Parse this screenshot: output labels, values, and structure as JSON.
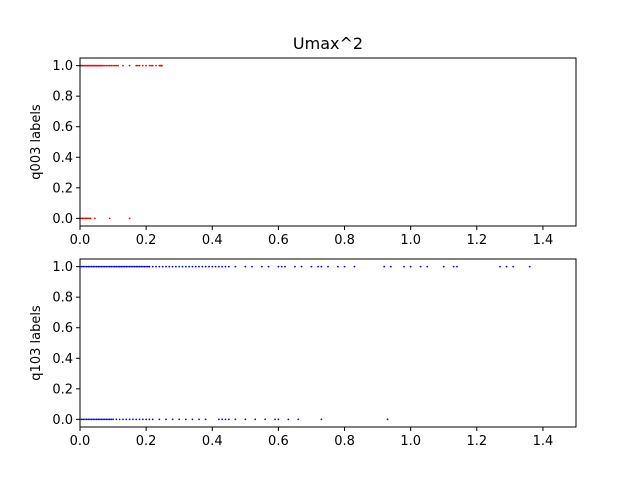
{
  "chart_data": [
    {
      "type": "scatter",
      "title": "Umax^2",
      "xlabel": "",
      "ylabel": "q003 labels",
      "xlim": [
        0,
        1.5
      ],
      "ylim": [
        -0.05,
        1.05
      ],
      "xticks": [
        "0.0",
        "0.2",
        "0.4",
        "0.6",
        "0.8",
        "1.0",
        "1.2",
        "1.4"
      ],
      "yticks": [
        "0.0",
        "0.2",
        "0.4",
        "0.6",
        "0.8",
        "1.0"
      ],
      "grid": false,
      "color": "#ff0000",
      "series": [
        {
          "points": [
            [
              0.0,
              1
            ],
            [
              0.003,
              1
            ],
            [
              0.006,
              1
            ],
            [
              0.009,
              1
            ],
            [
              0.012,
              1
            ],
            [
              0.015,
              1
            ],
            [
              0.018,
              1
            ],
            [
              0.021,
              1
            ],
            [
              0.024,
              1
            ],
            [
              0.027,
              1
            ],
            [
              0.03,
              1
            ],
            [
              0.033,
              1
            ],
            [
              0.036,
              1
            ],
            [
              0.039,
              1
            ],
            [
              0.042,
              1
            ],
            [
              0.045,
              1
            ],
            [
              0.048,
              1
            ],
            [
              0.051,
              1
            ],
            [
              0.054,
              1
            ],
            [
              0.057,
              1
            ],
            [
              0.06,
              1
            ],
            [
              0.063,
              1
            ],
            [
              0.066,
              1
            ],
            [
              0.07,
              1
            ],
            [
              0.075,
              1
            ],
            [
              0.08,
              1
            ],
            [
              0.085,
              1
            ],
            [
              0.09,
              1
            ],
            [
              0.095,
              1
            ],
            [
              0.1,
              1
            ],
            [
              0.105,
              1
            ],
            [
              0.11,
              1
            ],
            [
              0.115,
              1
            ],
            [
              0.13,
              1
            ],
            [
              0.15,
              1
            ],
            [
              0.17,
              1
            ],
            [
              0.175,
              1
            ],
            [
              0.18,
              1
            ],
            [
              0.19,
              1
            ],
            [
              0.2,
              1
            ],
            [
              0.21,
              1
            ],
            [
              0.215,
              1
            ],
            [
              0.22,
              1
            ],
            [
              0.23,
              1
            ],
            [
              0.24,
              1
            ],
            [
              0.242,
              1
            ],
            [
              0.244,
              1
            ],
            [
              0.246,
              1
            ],
            [
              0.248,
              1
            ],
            [
              0.0,
              0
            ],
            [
              0.004,
              0
            ],
            [
              0.008,
              0
            ],
            [
              0.012,
              0
            ],
            [
              0.016,
              0
            ],
            [
              0.02,
              0
            ],
            [
              0.024,
              0
            ],
            [
              0.028,
              0
            ],
            [
              0.032,
              0
            ],
            [
              0.045,
              0
            ],
            [
              0.09,
              0
            ],
            [
              0.15,
              0
            ]
          ]
        }
      ]
    },
    {
      "type": "scatter",
      "title": "",
      "xlabel": "",
      "ylabel": "q103 labels",
      "xlim": [
        0,
        1.5
      ],
      "ylim": [
        -0.05,
        1.05
      ],
      "xticks": [
        "0.0",
        "0.2",
        "0.4",
        "0.6",
        "0.8",
        "1.0",
        "1.2",
        "1.4"
      ],
      "yticks": [
        "0.0",
        "0.2",
        "0.4",
        "0.6",
        "0.8",
        "1.0"
      ],
      "grid": false,
      "color": "#0000ff",
      "series": [
        {
          "points": [
            [
              0.0,
              1
            ],
            [
              0.005,
              1
            ],
            [
              0.01,
              1
            ],
            [
              0.015,
              1
            ],
            [
              0.02,
              1
            ],
            [
              0.025,
              1
            ],
            [
              0.03,
              1
            ],
            [
              0.035,
              1
            ],
            [
              0.04,
              1
            ],
            [
              0.045,
              1
            ],
            [
              0.05,
              1
            ],
            [
              0.055,
              1
            ],
            [
              0.06,
              1
            ],
            [
              0.065,
              1
            ],
            [
              0.07,
              1
            ],
            [
              0.075,
              1
            ],
            [
              0.08,
              1
            ],
            [
              0.085,
              1
            ],
            [
              0.09,
              1
            ],
            [
              0.095,
              1
            ],
            [
              0.1,
              1
            ],
            [
              0.105,
              1
            ],
            [
              0.11,
              1
            ],
            [
              0.115,
              1
            ],
            [
              0.12,
              1
            ],
            [
              0.125,
              1
            ],
            [
              0.13,
              1
            ],
            [
              0.135,
              1
            ],
            [
              0.14,
              1
            ],
            [
              0.145,
              1
            ],
            [
              0.15,
              1
            ],
            [
              0.155,
              1
            ],
            [
              0.16,
              1
            ],
            [
              0.165,
              1
            ],
            [
              0.17,
              1
            ],
            [
              0.175,
              1
            ],
            [
              0.18,
              1
            ],
            [
              0.185,
              1
            ],
            [
              0.19,
              1
            ],
            [
              0.195,
              1
            ],
            [
              0.2,
              1
            ],
            [
              0.205,
              1
            ],
            [
              0.21,
              1
            ],
            [
              0.22,
              1
            ],
            [
              0.23,
              1
            ],
            [
              0.24,
              1
            ],
            [
              0.25,
              1
            ],
            [
              0.26,
              1
            ],
            [
              0.27,
              1
            ],
            [
              0.28,
              1
            ],
            [
              0.29,
              1
            ],
            [
              0.3,
              1
            ],
            [
              0.31,
              1
            ],
            [
              0.32,
              1
            ],
            [
              0.33,
              1
            ],
            [
              0.34,
              1
            ],
            [
              0.35,
              1
            ],
            [
              0.36,
              1
            ],
            [
              0.37,
              1
            ],
            [
              0.38,
              1
            ],
            [
              0.39,
              1
            ],
            [
              0.4,
              1
            ],
            [
              0.41,
              1
            ],
            [
              0.42,
              1
            ],
            [
              0.43,
              1
            ],
            [
              0.44,
              1
            ],
            [
              0.45,
              1
            ],
            [
              0.47,
              1
            ],
            [
              0.5,
              1
            ],
            [
              0.52,
              1
            ],
            [
              0.55,
              1
            ],
            [
              0.57,
              1
            ],
            [
              0.6,
              1
            ],
            [
              0.61,
              1
            ],
            [
              0.62,
              1
            ],
            [
              0.65,
              1
            ],
            [
              0.67,
              1
            ],
            [
              0.7,
              1
            ],
            [
              0.72,
              1
            ],
            [
              0.73,
              1
            ],
            [
              0.75,
              1
            ],
            [
              0.78,
              1
            ],
            [
              0.8,
              1
            ],
            [
              0.83,
              1
            ],
            [
              0.92,
              1
            ],
            [
              0.94,
              1
            ],
            [
              0.98,
              1
            ],
            [
              1.0,
              1
            ],
            [
              1.03,
              1
            ],
            [
              1.05,
              1
            ],
            [
              1.1,
              1
            ],
            [
              1.13,
              1
            ],
            [
              1.14,
              1
            ],
            [
              1.27,
              1
            ],
            [
              1.29,
              1
            ],
            [
              1.31,
              1
            ],
            [
              1.36,
              1
            ],
            [
              0.0,
              0
            ],
            [
              0.005,
              0
            ],
            [
              0.01,
              0
            ],
            [
              0.015,
              0
            ],
            [
              0.02,
              0
            ],
            [
              0.025,
              0
            ],
            [
              0.03,
              0
            ],
            [
              0.035,
              0
            ],
            [
              0.04,
              0
            ],
            [
              0.045,
              0
            ],
            [
              0.05,
              0
            ],
            [
              0.055,
              0
            ],
            [
              0.06,
              0
            ],
            [
              0.065,
              0
            ],
            [
              0.07,
              0
            ],
            [
              0.075,
              0
            ],
            [
              0.08,
              0
            ],
            [
              0.085,
              0
            ],
            [
              0.09,
              0
            ],
            [
              0.095,
              0
            ],
            [
              0.1,
              0
            ],
            [
              0.11,
              0
            ],
            [
              0.12,
              0
            ],
            [
              0.13,
              0
            ],
            [
              0.14,
              0
            ],
            [
              0.15,
              0
            ],
            [
              0.16,
              0
            ],
            [
              0.17,
              0
            ],
            [
              0.18,
              0
            ],
            [
              0.19,
              0
            ],
            [
              0.2,
              0
            ],
            [
              0.21,
              0
            ],
            [
              0.22,
              0
            ],
            [
              0.24,
              0
            ],
            [
              0.26,
              0
            ],
            [
              0.28,
              0
            ],
            [
              0.3,
              0
            ],
            [
              0.32,
              0
            ],
            [
              0.34,
              0
            ],
            [
              0.36,
              0
            ],
            [
              0.38,
              0
            ],
            [
              0.42,
              0
            ],
            [
              0.43,
              0
            ],
            [
              0.44,
              0
            ],
            [
              0.45,
              0
            ],
            [
              0.47,
              0
            ],
            [
              0.5,
              0
            ],
            [
              0.53,
              0
            ],
            [
              0.56,
              0
            ],
            [
              0.59,
              0
            ],
            [
              0.6,
              0
            ],
            [
              0.63,
              0
            ],
            [
              0.66,
              0
            ],
            [
              0.73,
              0
            ],
            [
              0.93,
              0
            ]
          ]
        }
      ]
    }
  ]
}
